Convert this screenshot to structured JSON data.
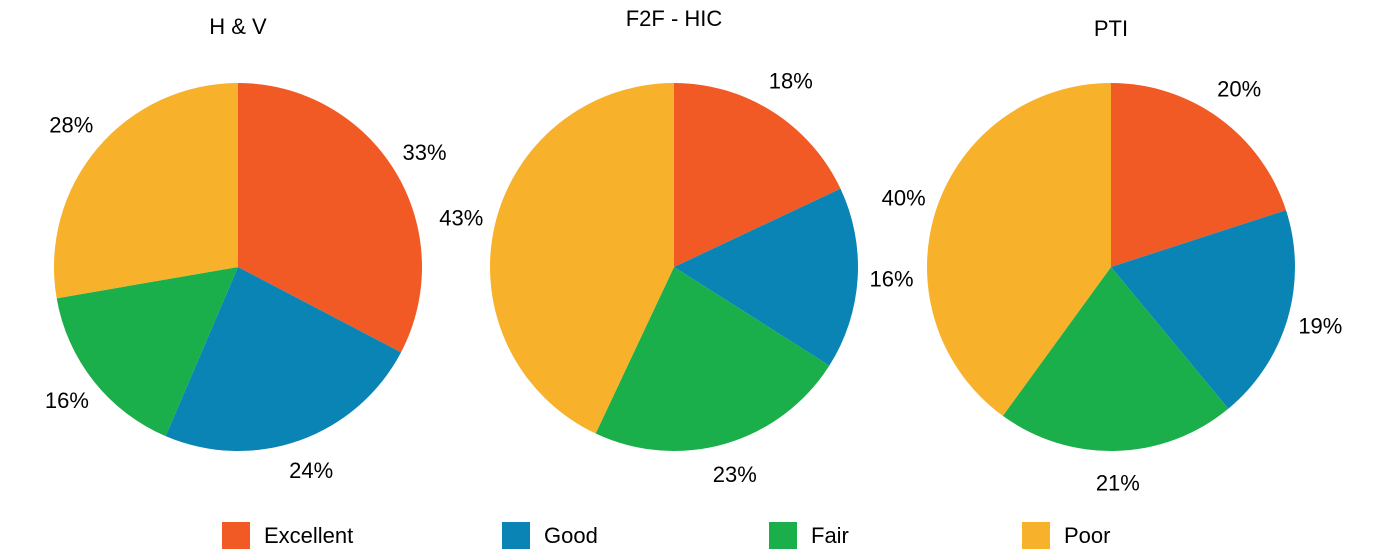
{
  "chart_data": [
    {
      "type": "pie",
      "title": "H & V",
      "categories": [
        "Excellent",
        "Good",
        "Fair",
        "Poor"
      ],
      "values": [
        33,
        24,
        16,
        28
      ],
      "value_labels": [
        "33%",
        "24%",
        "16%",
        "28%"
      ],
      "colors": [
        "#f15a24",
        "#0a84b4",
        "#1aaf4b",
        "#f7b12a"
      ]
    },
    {
      "type": "pie",
      "title": "F2F - HIC",
      "categories": [
        "Excellent",
        "Good",
        "Fair",
        "Poor"
      ],
      "values": [
        18,
        16,
        23,
        43
      ],
      "value_labels": [
        "18%",
        "16%",
        "23%",
        "43%"
      ],
      "colors": [
        "#f15a24",
        "#0a84b4",
        "#1aaf4b",
        "#f7b12a"
      ]
    },
    {
      "type": "pie",
      "title": "PTI",
      "categories": [
        "Excellent",
        "Good",
        "Fair",
        "Poor"
      ],
      "values": [
        20,
        19,
        21,
        40
      ],
      "value_labels": [
        "20%",
        "19%",
        "21%",
        "40%"
      ],
      "colors": [
        "#f15a24",
        "#0a84b4",
        "#1aaf4b",
        "#f7b12a"
      ]
    }
  ]
}
